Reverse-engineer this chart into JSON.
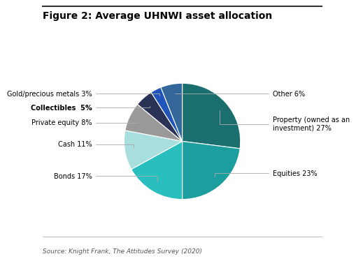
{
  "title": "Figure 2: Average UHNWI asset allocation",
  "source": "Source: Knight Frank, The Attitudes Survey (2020)",
  "slices": [
    {
      "label": "Property (owned as an\ninvestment) 27%",
      "value": 27,
      "color": "#1a6e6e",
      "side": "right"
    },
    {
      "label": "Equities 23%",
      "value": 23,
      "color": "#1d9e9e",
      "side": "right"
    },
    {
      "label": "Bonds 17%",
      "value": 17,
      "color": "#2abfbf",
      "side": "left"
    },
    {
      "label": "Cash 11%",
      "value": 11,
      "color": "#a8dede",
      "side": "left"
    },
    {
      "label": "Private equity 8%",
      "value": 8,
      "color": "#999999",
      "side": "left"
    },
    {
      "label": "Collectibles  5%",
      "value": 5,
      "color": "#2a3355",
      "side": "left"
    },
    {
      "label": "Gold/precious metals 3%",
      "value": 3,
      "color": "#2255bb",
      "side": "left"
    },
    {
      "label": "Other 6%",
      "value": 6,
      "color": "#336699",
      "side": "right"
    }
  ],
  "startangle": 90,
  "title_fontsize": 10,
  "label_fontsize": 7,
  "source_fontsize": 6.5,
  "bg_color": "#ffffff",
  "title_color": "#000000"
}
